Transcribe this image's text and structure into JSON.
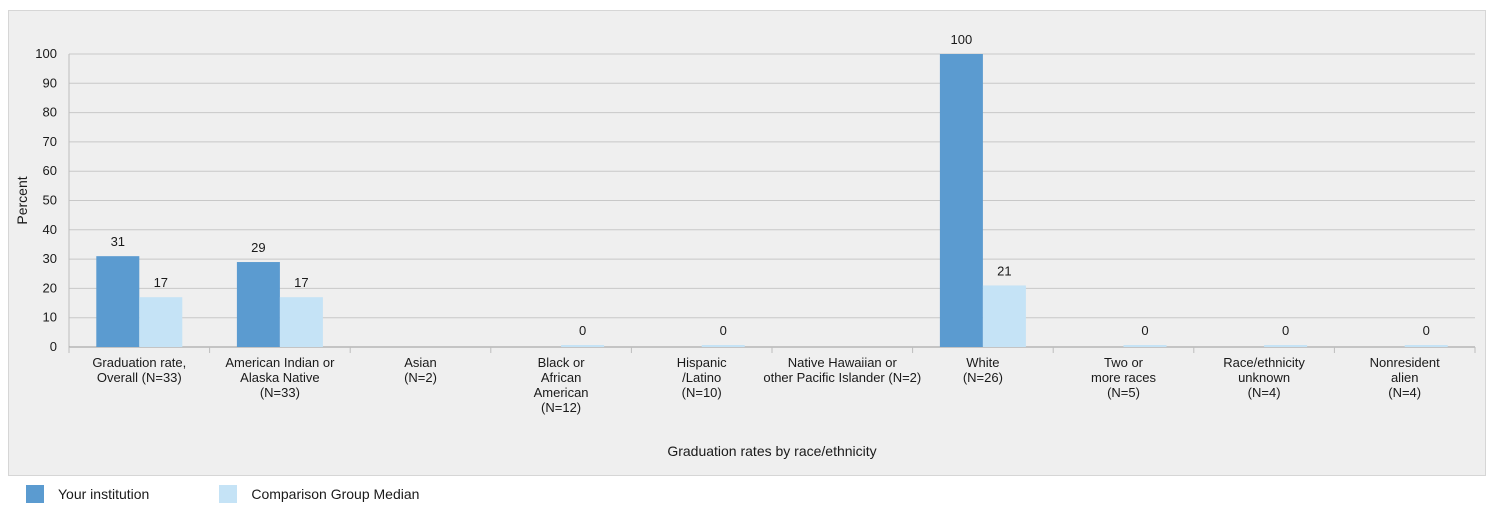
{
  "chart_data": {
    "type": "bar",
    "ylabel": "Percent",
    "xlabel": "Graduation rates by race/ethnicity",
    "ylim": [
      0,
      100
    ],
    "yticks": [
      0,
      10,
      20,
      30,
      40,
      50,
      60,
      70,
      80,
      90,
      100
    ],
    "grid": true,
    "legend_position": "bottom-left",
    "categories": [
      [
        "Graduation rate,",
        "Overall (N=33)"
      ],
      [
        "American Indian or",
        "Alaska Native",
        "(N=33)"
      ],
      [
        "Asian",
        "(N=2)"
      ],
      [
        "Black or",
        "African",
        "American",
        "(N=12)"
      ],
      [
        "Hispanic",
        "/Latino",
        "(N=10)"
      ],
      [
        "Native Hawaiian or",
        "other Pacific Islander (N=2)"
      ],
      [
        "White",
        "(N=26)"
      ],
      [
        "Two or",
        "more races",
        "(N=5)"
      ],
      [
        "Race/ethnicity",
        "unknown",
        "(N=4)"
      ],
      [
        "Nonresident",
        "alien",
        "(N=4)"
      ]
    ],
    "series": [
      {
        "name": "Your institution",
        "color": "#5b9bd0",
        "values": [
          31,
          29,
          null,
          null,
          null,
          null,
          100,
          null,
          null,
          null
        ]
      },
      {
        "name": "Comparison Group Median",
        "color": "#c5e3f6",
        "values": [
          17,
          17,
          null,
          0,
          0,
          null,
          21,
          0,
          0,
          0
        ]
      }
    ]
  }
}
